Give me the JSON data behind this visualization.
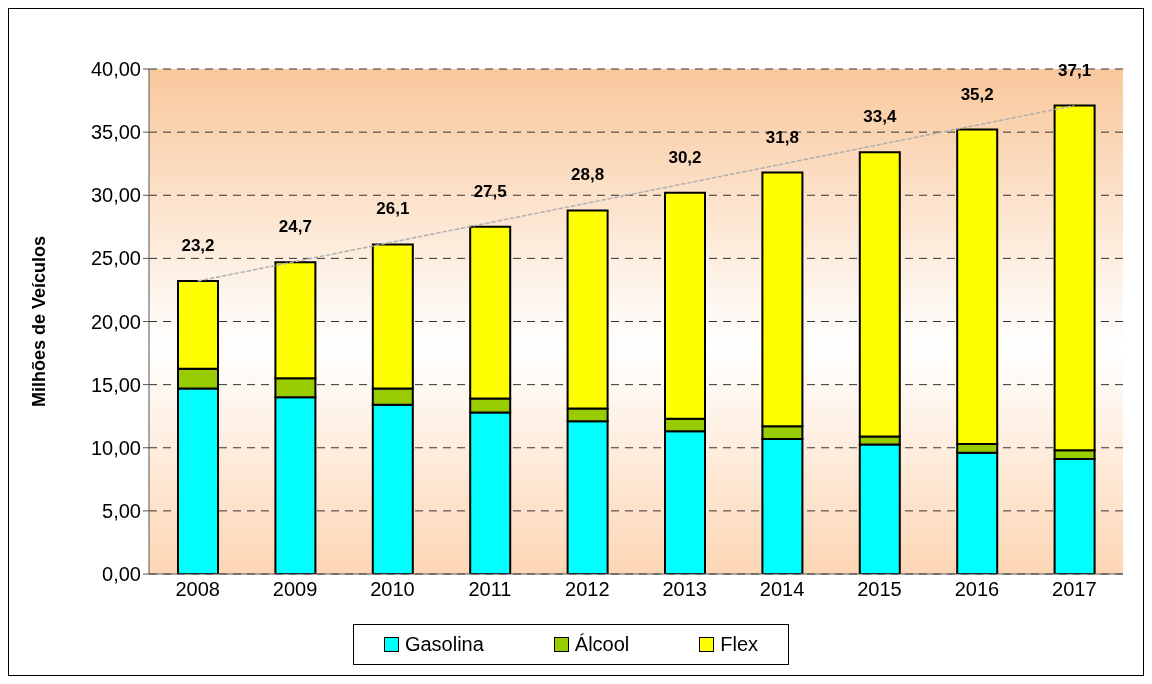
{
  "chart_data": {
    "type": "bar",
    "stacked": true,
    "ylabel": "Milhões de Veículos",
    "categories": [
      "2008",
      "2009",
      "2010",
      "2011",
      "2012",
      "2013",
      "2014",
      "2015",
      "2016",
      "2017"
    ],
    "series": [
      {
        "name": "Gasolina",
        "color": "#00ffff",
        "values": [
          14.7,
          14.0,
          13.4,
          12.8,
          12.1,
          11.3,
          10.7,
          10.25,
          9.6,
          9.1
        ]
      },
      {
        "name": "Álcool",
        "color": "#99cc00",
        "values": [
          1.55,
          1.5,
          1.3,
          1.1,
          1.0,
          1.0,
          1.0,
          0.65,
          0.7,
          0.7
        ]
      },
      {
        "name": "Flex",
        "color": "#ffff00",
        "values": [
          6.95,
          9.2,
          11.4,
          13.6,
          15.7,
          17.9,
          20.1,
          22.5,
          24.9,
          27.3
        ]
      },
      {
        "type": "line",
        "color": "#b0b0b0",
        "line_style": "dashed",
        "values": [
          23.2,
          null,
          null,
          null,
          null,
          null,
          null,
          null,
          null,
          37.1
        ]
      }
    ],
    "totals": [
      "23,2",
      "24,7",
      "26,1",
      "27,5",
      "28,8",
      "30,2",
      "31,8",
      "33,4",
      "35,2",
      "37,1"
    ],
    "ylim": [
      0,
      40
    ],
    "yticks": [
      {
        "value": 0,
        "label": "0,00"
      },
      {
        "value": 5,
        "label": "5,00"
      },
      {
        "value": 10,
        "label": "10,00"
      },
      {
        "value": 15,
        "label": "15,00"
      },
      {
        "value": 20,
        "label": "20,00"
      },
      {
        "value": 25,
        "label": "25,00"
      },
      {
        "value": 30,
        "label": "30,00"
      },
      {
        "value": 35,
        "label": "35,00"
      },
      {
        "value": 40,
        "label": "40,00"
      }
    ],
    "grid": "y",
    "legend": "bottom"
  }
}
